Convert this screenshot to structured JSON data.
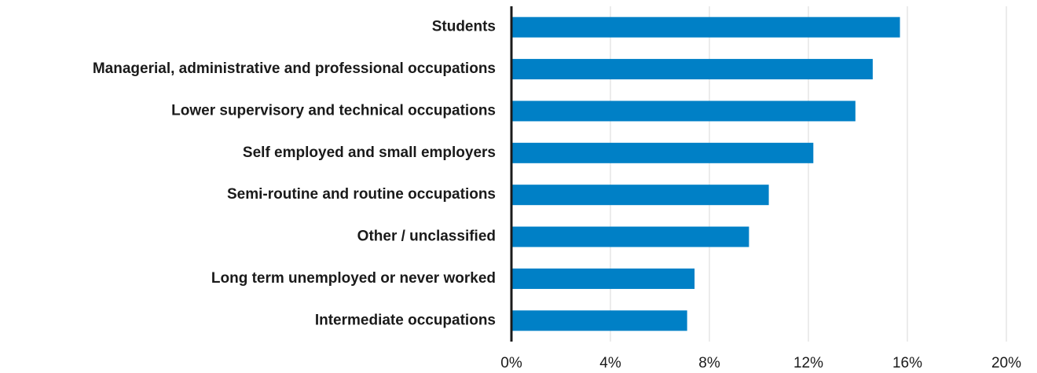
{
  "chart_data": {
    "type": "barh",
    "categories": [
      "Students",
      "Managerial, administrative and professional occupations",
      "Lower supervisory and technical occupations",
      "Self employed and small employers",
      "Semi-routine and routine occupations",
      "Other / unclassified",
      "Long term unemployed or never worked",
      "Intermediate occupations"
    ],
    "values": [
      15.7,
      14.6,
      13.9,
      12.2,
      10.4,
      9.6,
      7.4,
      7.1
    ],
    "color": "#0080c6",
    "xlim": [
      0,
      20
    ],
    "xticks": [
      {
        "value": 0,
        "label": "0%"
      },
      {
        "value": 4,
        "label": "4%"
      },
      {
        "value": 8,
        "label": "8%"
      },
      {
        "value": 12,
        "label": "12%"
      },
      {
        "value": 16,
        "label": "16%"
      },
      {
        "value": 20,
        "label": "20%"
      }
    ],
    "grid": true
  }
}
